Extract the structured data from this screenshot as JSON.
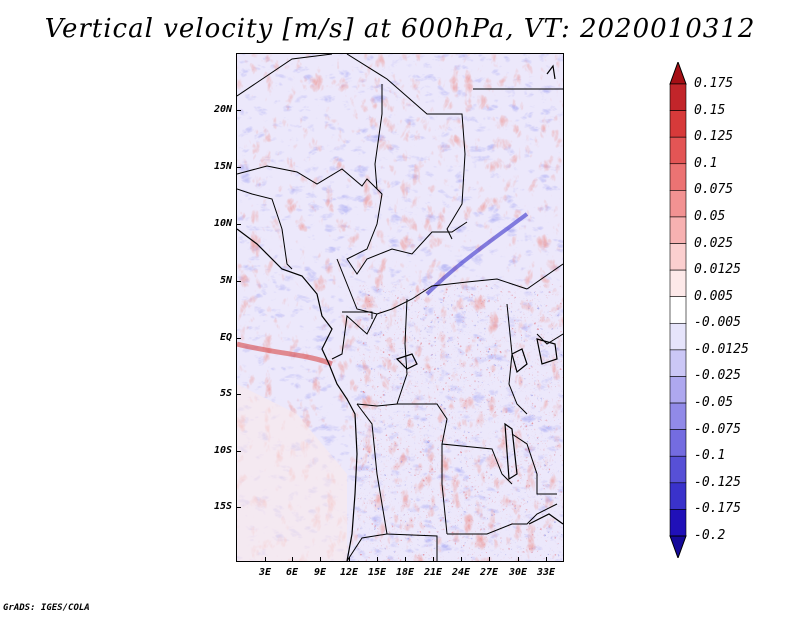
{
  "title": "Vertical velocity [m/s] at 600hPa, VT: 2020010312",
  "footer": "GrADS: IGES/COLA",
  "lat_labels": [
    "20N",
    "15N",
    "10N",
    "5N",
    "EQ",
    "5S",
    "10S",
    "15S"
  ],
  "lon_labels": [
    "3E",
    "6E",
    "9E",
    "12E",
    "15E",
    "18E",
    "21E",
    "24E",
    "27E",
    "30E",
    "33E"
  ],
  "colorbar": {
    "labels": [
      "0.175",
      "0.15",
      "0.125",
      "0.1",
      "0.075",
      "0.05",
      "0.025",
      "0.0125",
      "0.005",
      "-0.005",
      "-0.0125",
      "-0.025",
      "-0.05",
      "-0.075",
      "-0.1",
      "-0.125",
      "-0.175",
      "-0.2"
    ],
    "colors": [
      "#a50f15",
      "#c2252a",
      "#d73a3a",
      "#e35555",
      "#ec7373",
      "#f29292",
      "#f7b1b1",
      "#fbcfcf",
      "#fde9e9",
      "#ffffff",
      "#e6e4fb",
      "#cbc7f6",
      "#aea8ef",
      "#918ae8",
      "#746ce0",
      "#5750d6",
      "#3a32cb",
      "#2010b8",
      "#15099a"
    ]
  },
  "map": {
    "region": "Central Africa",
    "lat_range": [
      -19.5,
      25
    ],
    "lon_range": [
      0,
      35.5
    ]
  }
}
